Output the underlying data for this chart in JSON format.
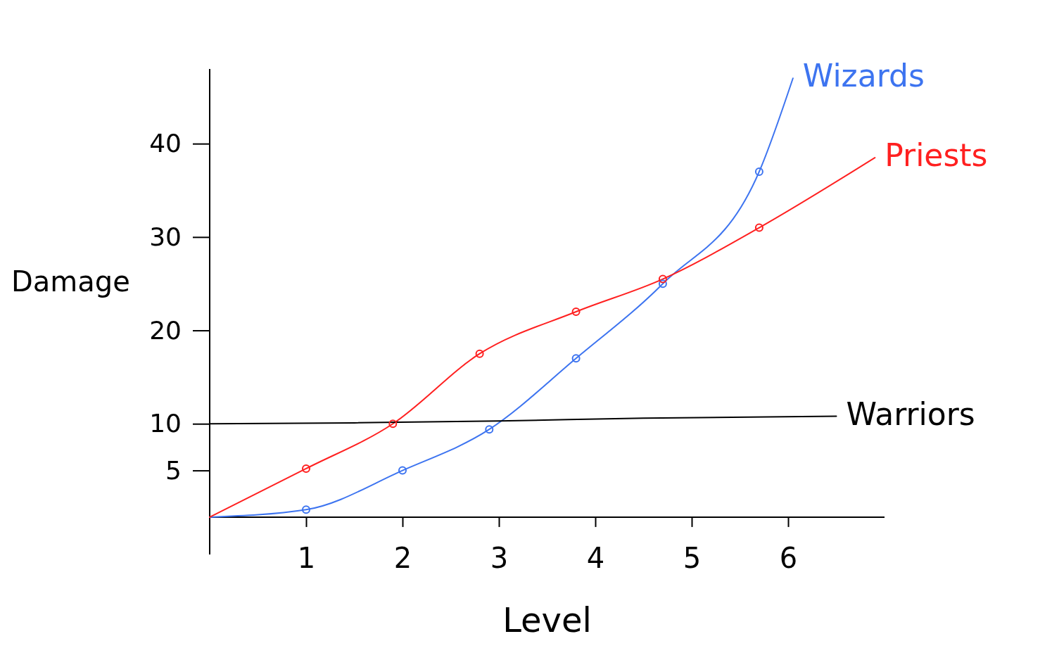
{
  "chart_data": {
    "type": "line",
    "xlabel": "Level",
    "ylabel": "Damage",
    "xlim": [
      0,
      7.0
    ],
    "ylim": [
      -4,
      48
    ],
    "xticks": [
      1,
      2,
      3,
      4,
      5,
      6
    ],
    "yticks": [
      5,
      10,
      20,
      30,
      40
    ],
    "grid": false,
    "legend": false,
    "line_style": "solid",
    "marker": "none",
    "series": [
      {
        "name": "Wizards",
        "color": "#3d74f0",
        "x": [
          0,
          1,
          2,
          2.9,
          3.8,
          4.7,
          5.7,
          6.05
        ],
        "values": [
          0,
          0.8,
          5,
          9.4,
          17,
          25,
          37,
          47
        ]
      },
      {
        "name": "Priests",
        "color": "#ff2020",
        "x": [
          0,
          1,
          1.9,
          2.8,
          3.8,
          4.7,
          5.7,
          6.9
        ],
        "values": [
          0,
          5.2,
          10,
          17.5,
          22,
          25.5,
          31,
          38.5
        ]
      },
      {
        "name": "Warriors",
        "color": "#000000",
        "x": [
          0,
          1.5,
          3,
          4.5,
          6.5
        ],
        "values": [
          10,
          10.1,
          10.3,
          10.6,
          10.8
        ]
      },
      {
        "type": "scatter",
        "marker": "circle",
        "color": "#3d74f0",
        "x": [
          1,
          2,
          2.9,
          3.8,
          4.7,
          5.7
        ],
        "values": [
          0.8,
          5,
          9.4,
          17,
          25,
          37
        ]
      },
      {
        "type": "scatter",
        "marker": "circle",
        "color": "#ff2020",
        "x": [
          1,
          1.9,
          2.8,
          3.8,
          4.7,
          5.7
        ],
        "values": [
          5.2,
          10,
          17.5,
          22,
          25.5,
          31
        ]
      }
    ]
  }
}
